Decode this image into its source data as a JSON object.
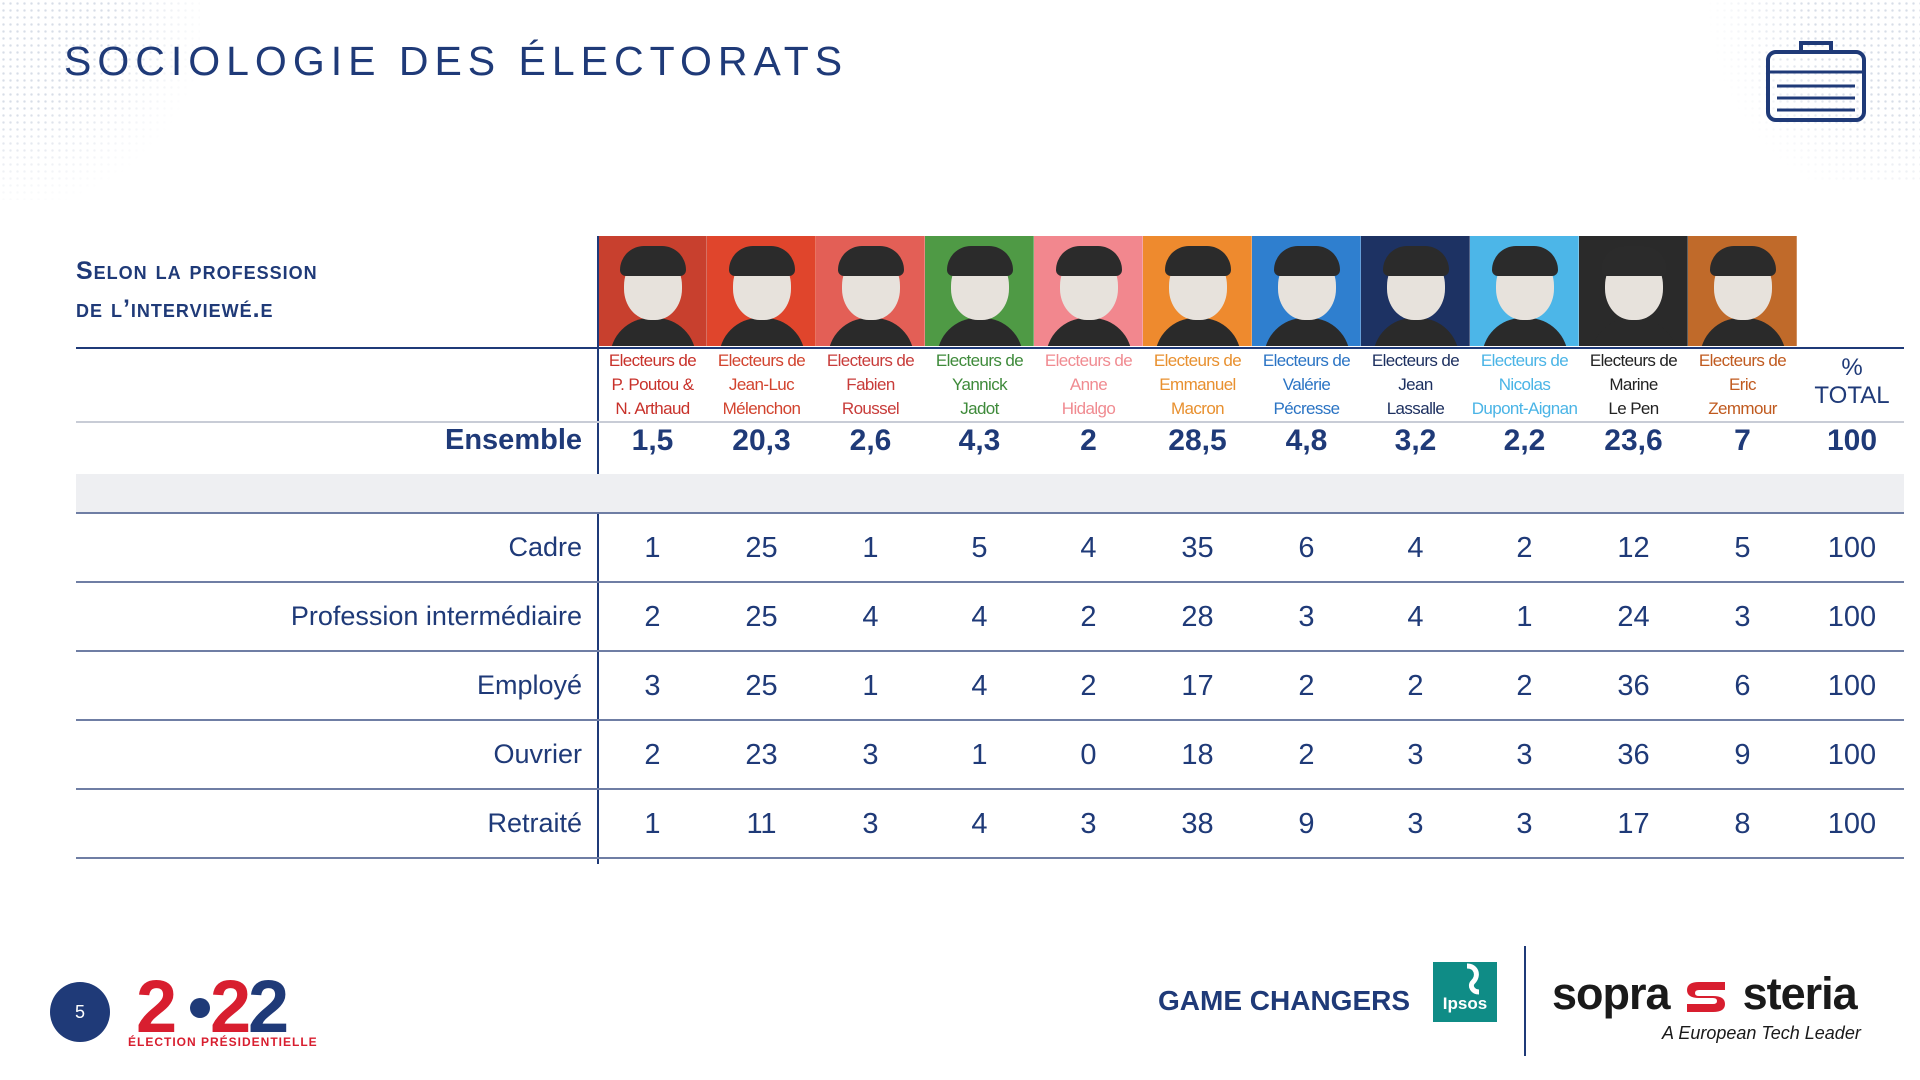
{
  "title": "SOCIOLOGIE DES ÉLECTORATS",
  "section": {
    "line1": "Selon la profession",
    "line2": "de l’interviewé.e"
  },
  "candidates": [
    {
      "l1": "Electeurs de",
      "l2": "P. Poutou &",
      "l3": "N. Arthaud",
      "text_color": "#c8312a",
      "bg": "#c8402e",
      "ensemble": "1,5"
    },
    {
      "l1": "Electeurs de",
      "l2": "Jean-Luc",
      "l3": "Mélenchon",
      "text_color": "#d2432e",
      "bg": "#e0452c",
      "ensemble": "20,3"
    },
    {
      "l1": "Electeurs de",
      "l2": "Fabien",
      "l3": "Roussel",
      "text_color": "#c83c3a",
      "bg": "#e35f56",
      "ensemble": "2,6"
    },
    {
      "l1": "Electeurs de",
      "l2": "Yannick",
      "l3": "Jadot",
      "text_color": "#3e8a3a",
      "bg": "#4f9a45",
      "ensemble": "4,3"
    },
    {
      "l1": "Electeurs de",
      "l2": "Anne",
      "l3": "Hidalgo",
      "text_color": "#f08b91",
      "bg": "#f2878e",
      "ensemble": "2"
    },
    {
      "l1": "Electeurs de",
      "l2": "Emmanuel",
      "l3": "Macron",
      "text_color": "#e8902f",
      "bg": "#ee8a2e",
      "ensemble": "28,5"
    },
    {
      "l1": "Electeurs de",
      "l2": "Valérie",
      "l3": "Pécresse",
      "text_color": "#2b74c4",
      "bg": "#2f7fcf",
      "ensemble": "4,8"
    },
    {
      "l1": "Electeurs de",
      "l2": "Jean",
      "l3": "Lassalle",
      "text_color": "#1c2f5f",
      "bg": "#1d3263",
      "ensemble": "3,2"
    },
    {
      "l1": "Electeurs de",
      "l2": "Nicolas",
      "l3": "Dupont-Aignan",
      "text_color": "#4ab4e6",
      "bg": "#4cb6e8",
      "ensemble": "2,2"
    },
    {
      "l1": "Electeurs de",
      "l2": "Marine",
      "l3": "Le Pen",
      "text_color": "#222222",
      "bg": "#2a2a2a",
      "ensemble": "23,6"
    },
    {
      "l1": "Electeurs de",
      "l2": "Eric",
      "l3": "Zemmour",
      "text_color": "#c05a1f",
      "bg": "#c06a2a",
      "ensemble": "7"
    }
  ],
  "total_header": {
    "pct": "%",
    "label": "TOTAL"
  },
  "ensemble": {
    "label": "Ensemble",
    "total": "100"
  },
  "rows": [
    {
      "label": "Cadre",
      "values": [
        "1",
        "25",
        "1",
        "5",
        "4",
        "35",
        "6",
        "4",
        "2",
        "12",
        "5"
      ],
      "total": "100"
    },
    {
      "label": "Profession intermédiaire",
      "values": [
        "2",
        "25",
        "4",
        "4",
        "2",
        "28",
        "3",
        "4",
        "1",
        "24",
        "3"
      ],
      "total": "100"
    },
    {
      "label": "Employé",
      "values": [
        "3",
        "25",
        "1",
        "4",
        "2",
        "17",
        "2",
        "2",
        "2",
        "36",
        "6"
      ],
      "total": "100"
    },
    {
      "label": "Ouvrier",
      "values": [
        "2",
        "23",
        "3",
        "1",
        "0",
        "18",
        "2",
        "3",
        "3",
        "36",
        "9"
      ],
      "total": "100"
    },
    {
      "label": "Retraité",
      "values": [
        "1",
        "11",
        "3",
        "4",
        "3",
        "38",
        "9",
        "3",
        "3",
        "17",
        "8"
      ],
      "total": "100"
    }
  ],
  "footer": {
    "page": "5",
    "logo_year": "2022",
    "logo_caption": "ÉLECTION PRÉSIDENTIELLE",
    "game_changers": "GAME CHANGERS",
    "ipsos": "Ipsos",
    "sopra": "sopra",
    "steria": "steria",
    "tagline": "A European Tech Leader"
  },
  "colors": {
    "navy": "#1f3a78",
    "accent_red": "#d81e2f",
    "ipsos_teal": "#0f8c86"
  }
}
